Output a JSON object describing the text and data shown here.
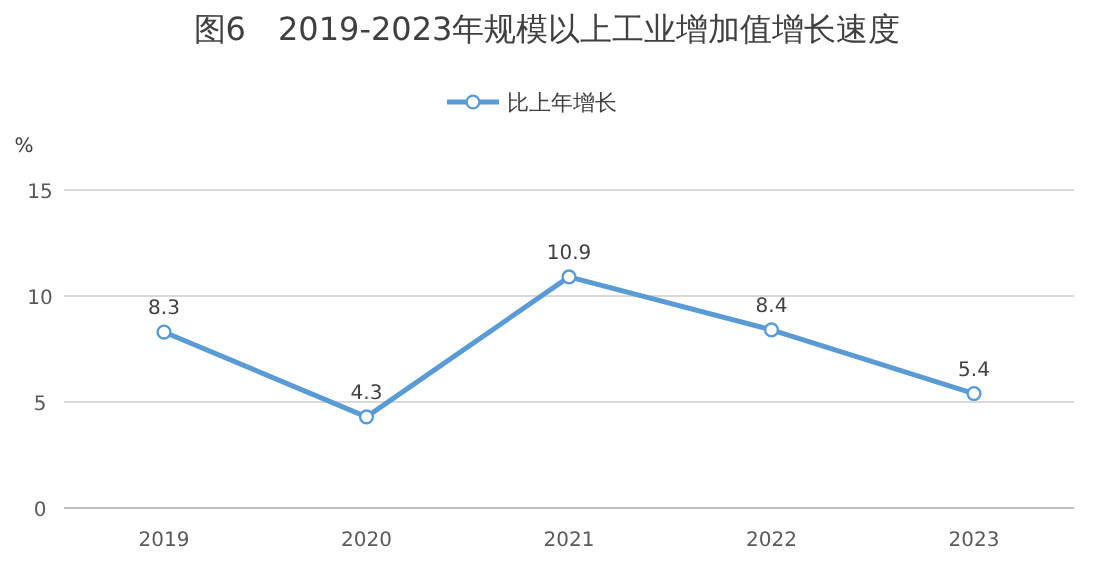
{
  "chart_data": {
    "type": "line",
    "title": "图6　2019-2023年规模以上工业增加值增长速度",
    "ylabel": "%",
    "categories": [
      "2019",
      "2020",
      "2021",
      "2022",
      "2023"
    ],
    "series": [
      {
        "name": "比上年增长",
        "color": "#5b9bd5",
        "values": [
          8.3,
          4.3,
          10.9,
          8.4,
          5.4
        ]
      }
    ],
    "ylim": [
      0,
      15
    ],
    "yticks": [
      0,
      5,
      10,
      15
    ],
    "grid": "y",
    "legend": "top",
    "marker": "circle",
    "data_labels": true
  }
}
